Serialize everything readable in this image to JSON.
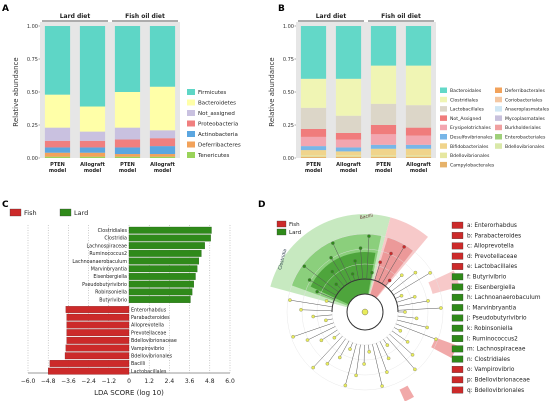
{
  "panel_labels": {
    "a": "A",
    "b": "B",
    "c": "C",
    "d": "D"
  },
  "chart_data": [
    {
      "type": "bar",
      "stacked": true,
      "panel": "A",
      "ylabel": "Relative abundance",
      "ylim": [
        0,
        1.0
      ],
      "yticks": [
        "0.00",
        "0.25",
        "0.50",
        "0.75",
        "1.00"
      ],
      "groups": [
        {
          "label": "Lard diet",
          "categories": [
            0,
            1
          ]
        },
        {
          "label": "Fish oil diet",
          "categories": [
            2,
            3
          ]
        }
      ],
      "categories": [
        "PTEN model",
        "Allograft model",
        "PTEN model",
        "Allograft model"
      ],
      "legend_position": "right",
      "series": [
        {
          "name": "Tenericutes",
          "color": "#9ad35a",
          "values": [
            0.01,
            0.01,
            0.01,
            0.01
          ]
        },
        {
          "name": "Deferribacteres",
          "color": "#f2a25a",
          "values": [
            0.03,
            0.03,
            0.02,
            0.02
          ]
        },
        {
          "name": "Actinobacteria",
          "color": "#5ba6e0",
          "values": [
            0.04,
            0.04,
            0.05,
            0.06
          ]
        },
        {
          "name": "Proteobacteria",
          "color": "#f07f7f",
          "values": [
            0.05,
            0.05,
            0.06,
            0.06
          ]
        },
        {
          "name": "Not_assigned",
          "color": "#c9c1e0",
          "values": [
            0.1,
            0.07,
            0.09,
            0.06
          ]
        },
        {
          "name": "Bacteroidetes",
          "color": "#ffffa8",
          "values": [
            0.25,
            0.19,
            0.27,
            0.33
          ]
        },
        {
          "name": "Firmicutes",
          "color": "#5ed6c6",
          "values": [
            0.52,
            0.61,
            0.5,
            0.46
          ]
        }
      ]
    },
    {
      "type": "bar",
      "stacked": true,
      "panel": "B",
      "ylabel": "Relative abundance",
      "ylim": [
        0,
        1.0
      ],
      "yticks": [
        "0.00",
        "0.25",
        "0.50",
        "0.75",
        "1.00"
      ],
      "groups": [
        {
          "label": "Lard diet",
          "categories": [
            0,
            1
          ]
        },
        {
          "label": "Fish oil diet",
          "categories": [
            2,
            3
          ]
        }
      ],
      "categories": [
        "PTEN model",
        "Allograft model",
        "PTEN model",
        "Allograft model"
      ],
      "legend_position": "right",
      "series": [
        {
          "name": "Campylobacterales",
          "color": "#e6b26a",
          "values": [
            0.01,
            0.01,
            0.01,
            0.01
          ]
        },
        {
          "name": "Bdellovibrionales",
          "color": "#e6e7a0",
          "values": [
            0.01,
            0.01,
            0.01,
            0.01
          ]
        },
        {
          "name": "Bifidobacteriales",
          "color": "#f0d48c",
          "values": [
            0.04,
            0.03,
            0.05,
            0.05
          ]
        },
        {
          "name": "Desulfovibrionales",
          "color": "#78b6e8",
          "values": [
            0.03,
            0.03,
            0.03,
            0.03
          ]
        },
        {
          "name": "Erysipelotrichales",
          "color": "#f3a6b0",
          "values": [
            0.07,
            0.06,
            0.08,
            0.07
          ]
        },
        {
          "name": "Not_Assigned",
          "color": "#f07c7c",
          "values": [
            0.06,
            0.05,
            0.07,
            0.06
          ]
        },
        {
          "name": "Lactobacillales",
          "color": "#dcd6c8",
          "values": [
            0.16,
            0.13,
            0.16,
            0.17
          ]
        },
        {
          "name": "Clostridiales",
          "color": "#f0f5b4",
          "values": [
            0.22,
            0.28,
            0.29,
            0.3
          ]
        },
        {
          "name": "Bacteroidales",
          "color": "#63d8c8",
          "values": [
            0.4,
            0.4,
            0.3,
            0.3
          ]
        }
      ],
      "legend_extra": [
        "Deferribacterales",
        "Coriobacteriales",
        "Anaeroplasmatales",
        "Mycoplasmatales",
        "Burkholderiales",
        "Enterobacteriales",
        "Bdellovibrionales"
      ],
      "legend_extra_colors": [
        "#f2a25a",
        "#f4c7a2",
        "#cfe6f4",
        "#c8c0dc",
        "#f0a0a0",
        "#9fd07a",
        "#d9e8a8"
      ]
    },
    {
      "type": "bar",
      "orientation": "horizontal",
      "panel": "C",
      "xlabel": "LDA SCORE (log 10)",
      "xlim": [
        -6.0,
        6.0
      ],
      "xticks": [
        "−6.0",
        "−4.8",
        "−3.6",
        "−2.4",
        "−1.2",
        "0",
        "1.2",
        "2.4",
        "3.6",
        "4.8",
        "6.0"
      ],
      "legend": [
        {
          "name": "Fish",
          "color": "#cc2a2a"
        },
        {
          "name": "Lard",
          "color": "#2f8a1a"
        }
      ],
      "series": [
        {
          "name": "Lard",
          "color": "#2f8a1a",
          "categories": [
            "Clostridiales",
            "Clostridia",
            "Lachnospiraceae",
            "Ruminococcus2",
            "Lachnoanaerobaculum",
            "Marvinbryantia",
            "Eisenbergiella",
            "Pseudobutyrivibrio",
            "Robinsoniella",
            "Butyrivibrio"
          ],
          "values": [
            4.9,
            4.85,
            4.5,
            4.3,
            4.15,
            4.05,
            3.95,
            3.85,
            3.75,
            3.65
          ]
        },
        {
          "name": "Fish",
          "color": "#cc2a2a",
          "categories": [
            "Enterorhabdus",
            "Parabacteroides",
            "Alloprevotella",
            "Prevotellaceae",
            "Bdellovibrionaceae",
            "Vampirovibrio",
            "Bdellovibrionales",
            "Bacilli",
            "Lactobacillales"
          ],
          "values": [
            -3.75,
            -3.7,
            -3.7,
            -3.7,
            -3.7,
            -3.75,
            -3.8,
            -4.7,
            -4.8
          ]
        }
      ]
    }
  ],
  "cladogram": {
    "legend": [
      {
        "name": "Fish",
        "color": "#cc2a2a"
      },
      {
        "name": "Lard",
        "color": "#2f8a1a"
      }
    ],
    "sector_labels": {
      "clostridia": "Clostridia",
      "bacilli": "Bacilli"
    },
    "key": [
      {
        "code": "a:",
        "name": "Enterorhabdus",
        "color": "#cc2a2a"
      },
      {
        "code": "b:",
        "name": "Parabacteroides",
        "color": "#cc2a2a"
      },
      {
        "code": "c:",
        "name": "Alloprevotella",
        "color": "#cc2a2a"
      },
      {
        "code": "d:",
        "name": "Prevotellaceae",
        "color": "#cc2a2a"
      },
      {
        "code": "e:",
        "name": "Lactobacillales",
        "color": "#cc2a2a"
      },
      {
        "code": "f:",
        "name": "Butyrivibrio",
        "color": "#2f8a1a"
      },
      {
        "code": "g:",
        "name": "Eisenbergiella",
        "color": "#2f8a1a"
      },
      {
        "code": "h:",
        "name": "Lachnoanaerobaculum",
        "color": "#2f8a1a"
      },
      {
        "code": "i:",
        "name": "Marvinbryantia",
        "color": "#2f8a1a"
      },
      {
        "code": "j:",
        "name": "Pseudobutyrivibrio",
        "color": "#2f8a1a"
      },
      {
        "code": "k:",
        "name": "Robinsoniella",
        "color": "#2f8a1a"
      },
      {
        "code": "l:",
        "name": "Ruminococcus2",
        "color": "#2f8a1a"
      },
      {
        "code": "m:",
        "name": "Lachnospiraceae",
        "color": "#2f8a1a"
      },
      {
        "code": "n:",
        "name": "Clostridiales",
        "color": "#2f8a1a"
      },
      {
        "code": "o:",
        "name": "Vampirovibrio",
        "color": "#cc2a2a"
      },
      {
        "code": "p:",
        "name": "Bdellovibrionaceae",
        "color": "#cc2a2a"
      },
      {
        "code": "q:",
        "name": "Bdellovibrionales",
        "color": "#cc2a2a"
      }
    ]
  }
}
